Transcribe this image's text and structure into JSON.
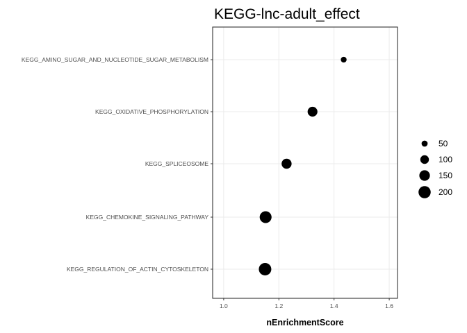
{
  "chart_data": {
    "type": "scatter",
    "title": "KEGG-lnc-adult_effect",
    "xlabel": "nEnrichmentScore",
    "ylabel": "",
    "xlim": [
      0.96,
      1.63
    ],
    "xticks": [
      "1.0",
      "1.2",
      "1.4",
      "1.6"
    ],
    "grid": true,
    "legend_position": "right",
    "categories": [
      "KEGG_AMINO_SUGAR_AND_NUCLEOTIDE_SUGAR_METABOLISM",
      "KEGG_OXIDATIVE_PHOSPHORYLATION",
      "KEGG_SPLICEOSOME",
      "KEGG_CHEMOKINE_SIGNALING_PATHWAY",
      "KEGG_REGULATION_OF_ACTIN_CYTOSKELETON"
    ],
    "series": [
      {
        "x": [
          1.435,
          1.322,
          1.228,
          1.152,
          1.15
        ],
        "size": [
          45,
          130,
          135,
          190,
          210
        ]
      }
    ],
    "size_legend": {
      "values": [
        50,
        100,
        150,
        200
      ],
      "labels": [
        "50",
        "100",
        "150",
        "200"
      ]
    },
    "point_color": "#000000"
  }
}
